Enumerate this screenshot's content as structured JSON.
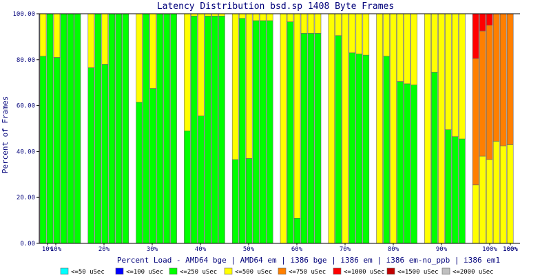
{
  "chart_data": {
    "type": "bar",
    "stacked": true,
    "title": "Latency Distribution bsd.sp 1408 Byte Frames",
    "xlabel": "Percent Load - AMD64 bge | AMD64 em | i386 bge | i386 em | i386 em-no_ppb | i386 em1",
    "ylabel": "Percent of Frames",
    "ylim": [
      0,
      100
    ],
    "y_ticks": [
      "0.00",
      "20.00",
      "40.00",
      "60.00",
      "80.00",
      "100.00"
    ],
    "groups": [
      "10%",
      "20%",
      "30%",
      "40%",
      "50%",
      "60%",
      "70%",
      "80%",
      "90%",
      "100%"
    ],
    "x_tick_labels": [
      "10%",
      "10%",
      "20%",
      "30%",
      "40%",
      "50%",
      "60%",
      "70%",
      "80%",
      "90%",
      "100%",
      "100%",
      "100%"
    ],
    "series_names": [
      "<=50 uSec",
      "<=100 uSec",
      "<=250 uSec",
      "<=500 uSec",
      "<=750 uSec",
      "<=1000 uSec",
      "<=1500 uSec",
      "<=2000 uSec"
    ],
    "series_colors": [
      "#00ffff",
      "#0000ff",
      "#00ff00",
      "#ffff00",
      "#ff7f00",
      "#ff0000",
      "#c00000",
      "#c0c0c0"
    ],
    "bars_per_group": 6,
    "bars": [
      [
        0,
        0,
        81.5,
        18.5,
        0,
        0,
        0,
        0
      ],
      [
        0,
        0,
        100,
        0,
        0,
        0,
        0,
        0
      ],
      [
        0,
        0,
        81,
        19,
        0,
        0,
        0,
        0
      ],
      [
        0,
        0,
        100,
        0,
        0,
        0,
        0,
        0
      ],
      [
        0,
        0,
        100,
        0,
        0,
        0,
        0,
        0
      ],
      [
        0,
        0,
        100,
        0,
        0,
        0,
        0,
        0
      ],
      [
        0,
        0,
        76.5,
        23.5,
        0,
        0,
        0,
        0
      ],
      [
        0,
        0,
        100,
        0,
        0,
        0,
        0,
        0
      ],
      [
        0,
        0,
        78,
        22,
        0,
        0,
        0,
        0
      ],
      [
        0,
        0,
        100,
        0,
        0,
        0,
        0,
        0
      ],
      [
        0,
        0,
        100,
        0,
        0,
        0,
        0,
        0
      ],
      [
        0,
        0,
        100,
        0,
        0,
        0,
        0,
        0
      ],
      [
        0,
        0,
        61.5,
        38.5,
        0,
        0,
        0,
        0
      ],
      [
        0,
        0,
        100,
        0,
        0,
        0,
        0,
        0
      ],
      [
        0,
        0,
        67.5,
        32.5,
        0,
        0,
        0,
        0
      ],
      [
        0,
        0,
        100,
        0,
        0,
        0,
        0,
        0
      ],
      [
        0,
        0,
        100,
        0,
        0,
        0,
        0,
        0
      ],
      [
        0,
        0,
        100,
        0,
        0,
        0,
        0,
        0
      ],
      [
        0,
        0,
        49,
        51,
        0,
        0,
        0,
        0
      ],
      [
        0,
        0,
        99,
        1,
        0,
        0,
        0,
        0
      ],
      [
        0,
        0,
        55.5,
        44.5,
        0,
        0,
        0,
        0
      ],
      [
        0,
        0,
        99,
        1,
        0,
        0,
        0,
        0
      ],
      [
        0,
        0,
        99,
        1,
        0,
        0,
        0,
        0
      ],
      [
        0,
        0,
        99,
        1,
        0,
        0,
        0,
        0
      ],
      [
        0,
        0,
        36.5,
        63.5,
        0,
        0,
        0,
        0
      ],
      [
        0,
        0,
        98,
        2,
        0,
        0,
        0,
        0
      ],
      [
        0,
        0,
        37,
        63,
        0,
        0,
        0,
        0
      ],
      [
        0,
        0,
        97,
        3,
        0,
        0,
        0,
        0
      ],
      [
        0,
        0,
        97,
        3,
        0,
        0,
        0,
        0
      ],
      [
        0,
        0,
        97,
        3,
        0,
        0,
        0,
        0
      ],
      [
        0,
        0,
        0,
        100,
        0,
        0,
        0,
        0
      ],
      [
        0,
        0,
        96.5,
        3.5,
        0,
        0,
        0,
        0
      ],
      [
        0,
        0,
        11,
        89,
        0,
        0,
        0,
        0
      ],
      [
        0,
        0,
        91.5,
        8.5,
        0,
        0,
        0,
        0
      ],
      [
        0,
        0,
        91.5,
        8.5,
        0,
        0,
        0,
        0
      ],
      [
        0,
        0,
        91.5,
        8.5,
        0,
        0,
        0,
        0
      ],
      [
        0,
        0,
        0,
        100,
        0,
        0,
        0,
        0
      ],
      [
        0,
        0,
        90.5,
        9.5,
        0,
        0,
        0,
        0
      ],
      [
        0,
        0,
        0,
        100,
        0,
        0,
        0,
        0
      ],
      [
        0,
        0,
        83,
        17,
        0,
        0,
        0,
        0
      ],
      [
        0,
        0,
        82.5,
        17.5,
        0,
        0,
        0,
        0
      ],
      [
        0,
        0,
        82,
        18,
        0,
        0,
        0,
        0
      ],
      [
        0,
        0,
        0,
        100,
        0,
        0,
        0,
        0
      ],
      [
        0,
        0,
        81.5,
        18.5,
        0,
        0,
        0,
        0
      ],
      [
        0,
        0,
        0,
        100,
        0,
        0,
        0,
        0
      ],
      [
        0,
        0,
        70.5,
        29.5,
        0,
        0,
        0,
        0
      ],
      [
        0,
        0,
        69.5,
        30.5,
        0,
        0,
        0,
        0
      ],
      [
        0,
        0,
        69,
        31,
        0,
        0,
        0,
        0
      ],
      [
        0,
        0,
        0,
        100,
        0,
        0,
        0,
        0
      ],
      [
        0,
        0,
        74.5,
        25.5,
        0,
        0,
        0,
        0
      ],
      [
        0,
        0,
        0,
        100,
        0,
        0,
        0,
        0
      ],
      [
        0,
        0,
        49.5,
        50.5,
        0,
        0,
        0,
        0
      ],
      [
        0,
        0,
        46.5,
        53.5,
        0,
        0,
        0,
        0
      ],
      [
        0,
        0,
        45.5,
        54.5,
        0,
        0,
        0,
        0
      ],
      [
        0,
        0,
        0,
        25.5,
        55,
        19.5,
        0,
        0
      ],
      [
        0,
        0,
        0,
        38,
        54.5,
        7.5,
        0,
        0
      ],
      [
        0,
        0,
        0,
        36.5,
        58.5,
        5,
        0,
        0
      ],
      [
        0,
        0,
        0,
        44.5,
        55.5,
        0,
        0,
        0
      ],
      [
        0,
        0,
        0,
        42.5,
        57.5,
        0,
        0,
        0
      ],
      [
        0,
        0,
        0,
        43,
        57,
        0,
        0,
        0
      ]
    ]
  }
}
